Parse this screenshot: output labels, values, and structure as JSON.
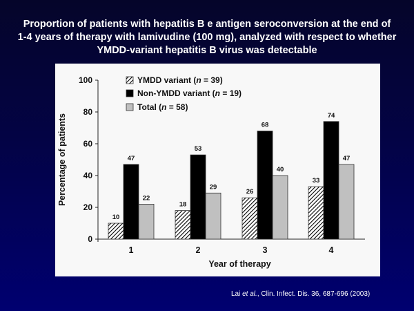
{
  "slide": {
    "title_lines": [
      "Proportion of patients with hepatitis B e antigen seroconversion at the end of",
      "1-4 years of therapy with lamivudine (100 mg), analyzed with respect to whether",
      "YMDD-variant hepatitis B virus was detectable"
    ],
    "citation": {
      "author": "Lai ",
      "etal": "et al.",
      "rest": ", Clin. Infect. Dis. 36, 687-696 (2003)"
    },
    "colors": {
      "background_top": "#05052a",
      "background_bottom": "#000070",
      "panel": "#f8f8f8",
      "title_text": "#ffffff"
    }
  },
  "chart_data": {
    "type": "bar",
    "title": "",
    "xlabel": "Year of therapy",
    "ylabel": "Percentage of patients",
    "ylim": [
      0,
      100
    ],
    "yticks": [
      0,
      20,
      40,
      60,
      80,
      100
    ],
    "categories": [
      "1",
      "2",
      "3",
      "4"
    ],
    "legend_position": "top-left",
    "series": [
      {
        "name": "YMDD variant",
        "n_label": "n",
        "n_value": " = 39",
        "pattern": "hatched",
        "color": "#000000",
        "values": [
          10,
          18,
          26,
          33
        ]
      },
      {
        "name": "Non-YMDD variant",
        "n_label": "n",
        "n_value": " = 19",
        "pattern": "solid",
        "color": "#000000",
        "values": [
          47,
          53,
          68,
          74
        ]
      },
      {
        "name": "Total",
        "n_label": "n",
        "n_value": " = 58",
        "pattern": "solid",
        "color": "#c0c0c0",
        "values": [
          22,
          29,
          40,
          47
        ]
      }
    ],
    "data_labels": true,
    "grid": false
  }
}
